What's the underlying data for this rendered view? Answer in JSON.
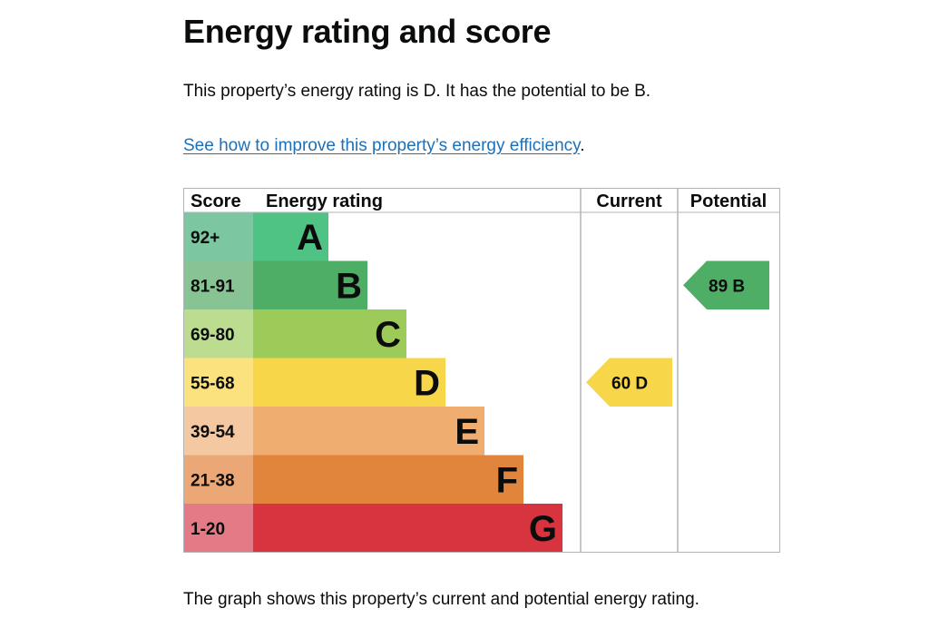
{
  "heading": "Energy rating and score",
  "intro_text": "This property’s energy rating is D. It has the potential to be B.",
  "improve_link": "See how to improve this property’s energy efficiency",
  "improve_link_suffix": ".",
  "footer_text": "The graph shows this property’s current and potential energy rating.",
  "chart_data": {
    "type": "table",
    "title": "Energy rating and score",
    "columns": [
      "Score",
      "Energy rating",
      "Current",
      "Potential"
    ],
    "bands": [
      {
        "letter": "A",
        "range": "92+",
        "color": "#4fc384",
        "score_color": "#7dc6a2"
      },
      {
        "letter": "B",
        "range": "81-91",
        "color": "#4fae65",
        "score_color": "#88c493"
      },
      {
        "letter": "C",
        "range": "69-80",
        "color": "#9ccb5a",
        "score_color": "#bcdc90"
      },
      {
        "letter": "D",
        "range": "55-68",
        "color": "#f7d64a",
        "score_color": "#fbe27e"
      },
      {
        "letter": "E",
        "range": "39-54",
        "color": "#f0ad70",
        "score_color": "#f4c8a0"
      },
      {
        "letter": "F",
        "range": "21-38",
        "color": "#e1853d",
        "score_color": "#eba775"
      },
      {
        "letter": "G",
        "range": "1-20",
        "color": "#d8343f",
        "score_color": "#e57a87"
      }
    ],
    "current": {
      "score": 60,
      "band": "D",
      "label": "60  D",
      "color": "#f7d64a"
    },
    "potential": {
      "score": 89,
      "band": "B",
      "label": "89  B",
      "color": "#4fae65"
    }
  }
}
